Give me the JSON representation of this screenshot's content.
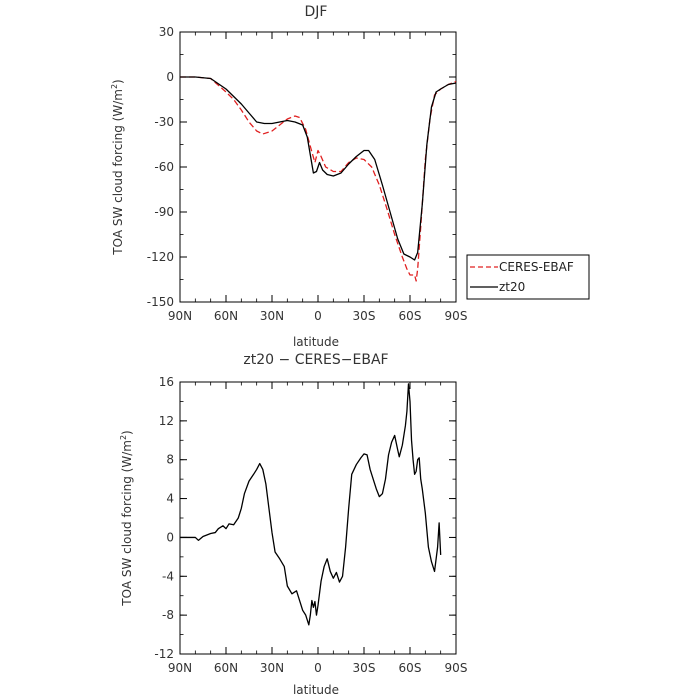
{
  "chart_data": [
    {
      "type": "line",
      "title": "DJF",
      "xlabel": "latitude",
      "ylabel_main": "TOA SW cloud forcing (W/m",
      "ylabel_sup": "2",
      "ylabel_close": ")",
      "xticks": [
        {
          "value": -90,
          "label": "90N"
        },
        {
          "value": -60,
          "label": "60N"
        },
        {
          "value": -30,
          "label": "30N"
        },
        {
          "value": 0,
          "label": "0"
        },
        {
          "value": 30,
          "label": "30S"
        },
        {
          "value": 60,
          "label": "60S"
        },
        {
          "value": 90,
          "label": "90S"
        }
      ],
      "yticks": [
        30,
        0,
        -30,
        -60,
        -90,
        -120,
        -150
      ],
      "xlim": [
        -90,
        90
      ],
      "ylim": [
        -150,
        30
      ],
      "legend": "right",
      "series": [
        {
          "name": "CERES-EBAF",
          "color": "#e02020",
          "dashed": true,
          "points": [
            [
              -90,
              0
            ],
            [
              -80,
              0
            ],
            [
              -70,
              -1
            ],
            [
              -60,
              -10
            ],
            [
              -55,
              -15
            ],
            [
              -50,
              -22
            ],
            [
              -45,
              -30
            ],
            [
              -40,
              -36
            ],
            [
              -36,
              -38
            ],
            [
              -30,
              -36
            ],
            [
              -25,
              -32
            ],
            [
              -20,
              -28
            ],
            [
              -15,
              -26
            ],
            [
              -12,
              -27
            ],
            [
              -8,
              -35
            ],
            [
              -4,
              -50
            ],
            [
              -2,
              -57
            ],
            [
              0,
              -49
            ],
            [
              2,
              -53
            ],
            [
              5,
              -60
            ],
            [
              10,
              -63
            ],
            [
              15,
              -63
            ],
            [
              20,
              -57
            ],
            [
              25,
              -54
            ],
            [
              30,
              -55
            ],
            [
              35,
              -60
            ],
            [
              40,
              -72
            ],
            [
              45,
              -88
            ],
            [
              50,
              -105
            ],
            [
              55,
              -120
            ],
            [
              58,
              -128
            ],
            [
              60,
              -132
            ],
            [
              63,
              -132
            ],
            [
              64,
              -136
            ],
            [
              65,
              -128
            ],
            [
              67,
              -100
            ],
            [
              70,
              -55
            ],
            [
              73,
              -28
            ],
            [
              76,
              -12
            ],
            [
              80,
              -8
            ],
            [
              85,
              -5
            ],
            [
              90,
              -3
            ]
          ]
        },
        {
          "name": "zt20",
          "color": "#000000",
          "dashed": false,
          "points": [
            [
              -90,
              0
            ],
            [
              -80,
              0
            ],
            [
              -70,
              -1
            ],
            [
              -60,
              -8
            ],
            [
              -55,
              -13
            ],
            [
              -50,
              -18
            ],
            [
              -45,
              -24
            ],
            [
              -40,
              -30
            ],
            [
              -35,
              -31
            ],
            [
              -30,
              -31
            ],
            [
              -25,
              -30
            ],
            [
              -20,
              -29
            ],
            [
              -15,
              -30
            ],
            [
              -10,
              -32
            ],
            [
              -7,
              -40
            ],
            [
              -5,
              -52
            ],
            [
              -3,
              -64
            ],
            [
              -1,
              -63
            ],
            [
              1,
              -57
            ],
            [
              3,
              -62
            ],
            [
              6,
              -65
            ],
            [
              10,
              -66
            ],
            [
              15,
              -64
            ],
            [
              20,
              -58
            ],
            [
              25,
              -53
            ],
            [
              30,
              -49
            ],
            [
              33,
              -49
            ],
            [
              37,
              -55
            ],
            [
              42,
              -72
            ],
            [
              47,
              -90
            ],
            [
              52,
              -108
            ],
            [
              56,
              -118
            ],
            [
              60,
              -120
            ],
            [
              63,
              -122
            ],
            [
              65,
              -117
            ],
            [
              68,
              -85
            ],
            [
              71,
              -45
            ],
            [
              74,
              -20
            ],
            [
              77,
              -10
            ],
            [
              80,
              -8
            ],
            [
              85,
              -5
            ],
            [
              90,
              -4
            ]
          ]
        }
      ]
    },
    {
      "type": "line",
      "title": "zt20 − CERES−EBAF",
      "xlabel": "latitude",
      "ylabel_main": "TOA SW cloud forcing (W/m",
      "ylabel_sup": "2",
      "ylabel_close": ")",
      "xticks": [
        {
          "value": -90,
          "label": "90N"
        },
        {
          "value": -60,
          "label": "60N"
        },
        {
          "value": -30,
          "label": "30N"
        },
        {
          "value": 0,
          "label": "0"
        },
        {
          "value": 30,
          "label": "30S"
        },
        {
          "value": 60,
          "label": "60S"
        },
        {
          "value": 90,
          "label": "90S"
        }
      ],
      "yticks": [
        16,
        12,
        8,
        4,
        0,
        -4,
        -8,
        -12
      ],
      "xlim": [
        -90,
        90
      ],
      "ylim": [
        -12,
        16
      ],
      "series": [
        {
          "name": "",
          "color": "#000000",
          "dashed": false,
          "points": [
            [
              -90,
              0
            ],
            [
              -80,
              0
            ],
            [
              -78,
              -0.3
            ],
            [
              -75,
              0.1
            ],
            [
              -70,
              0.4
            ],
            [
              -67,
              0.5
            ],
            [
              -65,
              0.9
            ],
            [
              -62,
              1.2
            ],
            [
              -60,
              0.9
            ],
            [
              -58,
              1.4
            ],
            [
              -55,
              1.3
            ],
            [
              -52,
              2.0
            ],
            [
              -50,
              3.0
            ],
            [
              -48,
              4.5
            ],
            [
              -45,
              5.8
            ],
            [
              -42,
              6.5
            ],
            [
              -40,
              7.0
            ],
            [
              -38,
              7.6
            ],
            [
              -36,
              7.0
            ],
            [
              -34,
              5.5
            ],
            [
              -32,
              3.0
            ],
            [
              -30,
              0.5
            ],
            [
              -28,
              -1.5
            ],
            [
              -25,
              -2.2
            ],
            [
              -22,
              -3.0
            ],
            [
              -20,
              -5.0
            ],
            [
              -17,
              -5.8
            ],
            [
              -14,
              -5.5
            ],
            [
              -12,
              -6.5
            ],
            [
              -10,
              -7.5
            ],
            [
              -8,
              -8.0
            ],
            [
              -6,
              -9.0
            ],
            [
              -5,
              -8.0
            ],
            [
              -4,
              -6.5
            ],
            [
              -3,
              -7.2
            ],
            [
              -2,
              -6.6
            ],
            [
              -1,
              -8.0
            ],
            [
              0,
              -7.0
            ],
            [
              2,
              -4.5
            ],
            [
              4,
              -3.0
            ],
            [
              6,
              -2.2
            ],
            [
              8,
              -3.5
            ],
            [
              10,
              -4.2
            ],
            [
              12,
              -3.6
            ],
            [
              14,
              -4.6
            ],
            [
              16,
              -4.0
            ],
            [
              18,
              -1.0
            ],
            [
              20,
              3.0
            ],
            [
              22,
              6.5
            ],
            [
              25,
              7.5
            ],
            [
              28,
              8.2
            ],
            [
              30,
              8.6
            ],
            [
              32,
              8.5
            ],
            [
              34,
              7.0
            ],
            [
              36,
              6.0
            ],
            [
              38,
              5.0
            ],
            [
              40,
              4.2
            ],
            [
              42,
              4.5
            ],
            [
              44,
              6.0
            ],
            [
              46,
              8.5
            ],
            [
              48,
              9.8
            ],
            [
              50,
              10.5
            ],
            [
              52,
              9.0
            ],
            [
              53,
              8.3
            ],
            [
              55,
              9.5
            ],
            [
              57,
              11.5
            ],
            [
              58,
              13.0
            ],
            [
              59,
              15.8
            ],
            [
              60,
              14.0
            ],
            [
              61,
              10.0
            ],
            [
              62,
              8.0
            ],
            [
              63,
              6.5
            ],
            [
              64,
              6.8
            ],
            [
              65,
              8.0
            ],
            [
              66,
              8.2
            ],
            [
              67,
              6.0
            ],
            [
              68,
              5.0
            ],
            [
              70,
              2.5
            ],
            [
              72,
              -1.0
            ],
            [
              74,
              -2.5
            ],
            [
              76,
              -3.5
            ],
            [
              78,
              -1.0
            ],
            [
              79,
              1.5
            ],
            [
              80,
              -1.8
            ]
          ]
        }
      ]
    }
  ]
}
